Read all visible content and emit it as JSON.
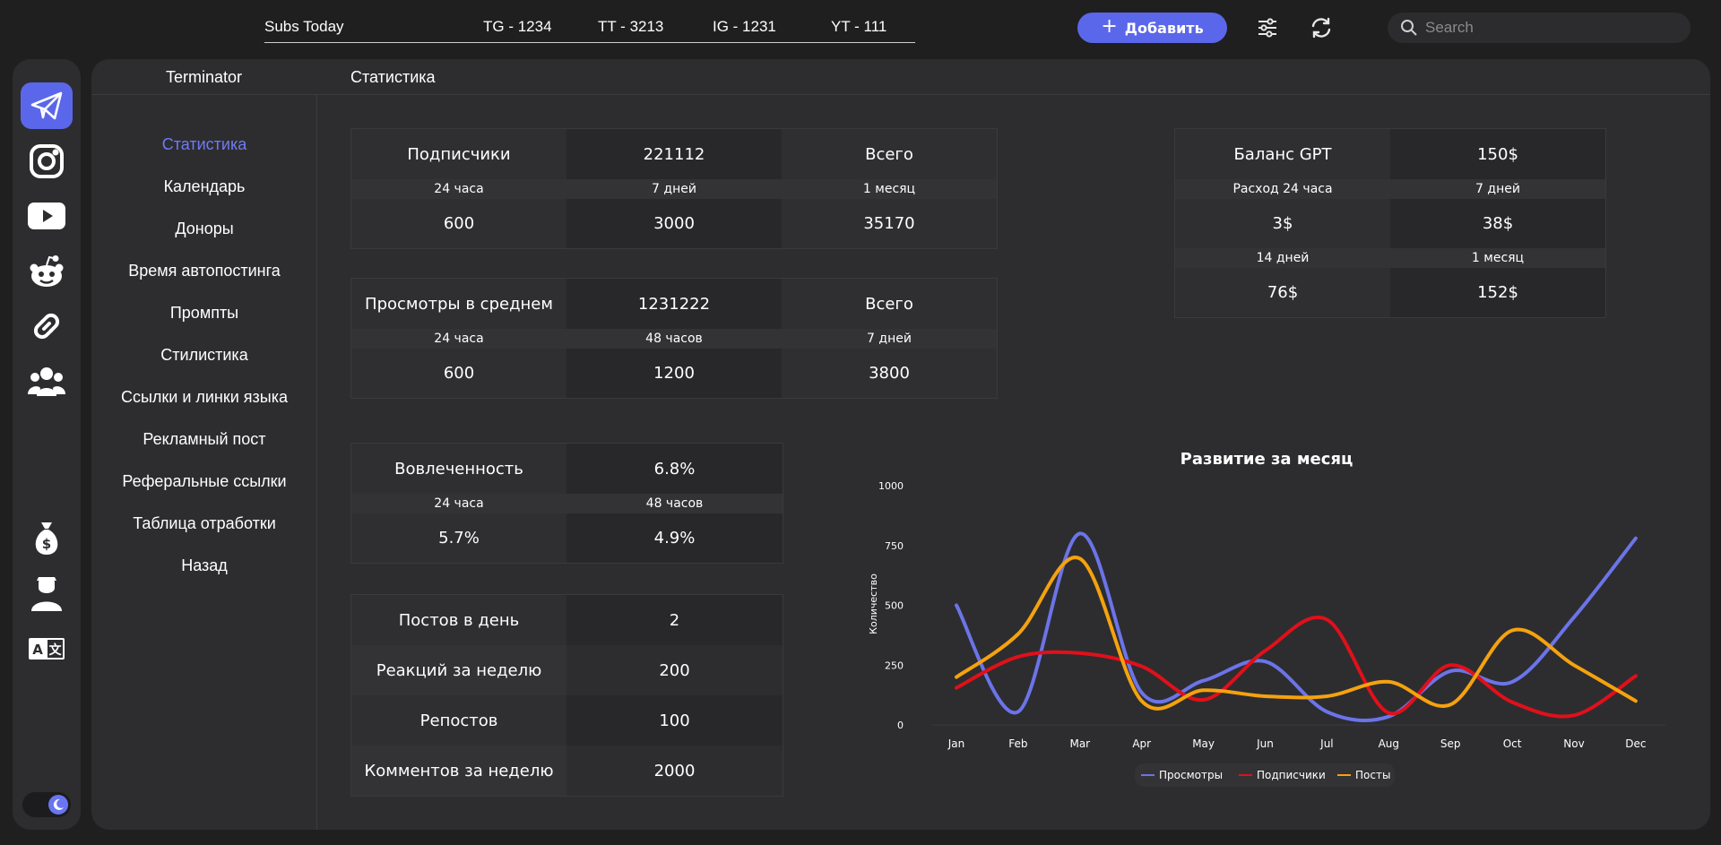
{
  "topbar": {
    "subs_label": "Subs Today",
    "tg": "TG - 1234",
    "tt": "TT - 3213",
    "ig": "IG - 1231",
    "yt": "YT - 111",
    "add_label": "Добавить",
    "search_placeholder": "Search",
    "accent": "#5b67ea"
  },
  "rail": {
    "items": [
      "telegram-icon",
      "instagram-icon",
      "youtube-icon",
      "reddit-icon",
      "link-icon",
      "users-icon"
    ],
    "bottom": [
      "money-bag-icon",
      "user-icon",
      "translate-icon"
    ]
  },
  "panel": {
    "account": "Terminator",
    "page": "Статистика"
  },
  "subnav": {
    "items": [
      "Статистика",
      "Календарь",
      "Доноры",
      "Время автопостинга",
      "Промпты",
      "Стилистика",
      "Ссылки и линки языка",
      "Рекламный пост",
      "Реферальные ссылки",
      "Таблица отработки",
      "Назад"
    ]
  },
  "subs": {
    "label": "Подписчики",
    "value": "221112",
    "total": "Всего",
    "h1": "24 часа",
    "h2": "7 дней",
    "h3": "1 месяц",
    "v1": "600",
    "v2": "3000",
    "v3": "35170"
  },
  "views": {
    "label": "Просмотры в среднем",
    "value": "1231222",
    "total": "Всего",
    "h1": "24 часа",
    "h2": "48 часов",
    "h3": "7 дней",
    "v1": "600",
    "v2": "1200",
    "v3": "3800"
  },
  "engagement": {
    "label": "Вовлеченность",
    "value": "6.8%",
    "h1": "24 часа",
    "h2": "48 часов",
    "v1": "5.7%",
    "v2": "4.9%"
  },
  "posts": {
    "rows": [
      {
        "label": "Постов в день",
        "value": "2"
      },
      {
        "label": "Реакций за неделю",
        "value": "200"
      },
      {
        "label": "Репостов",
        "value": "100"
      },
      {
        "label": "Комментов за неделю",
        "value": "2000"
      }
    ]
  },
  "gpt": {
    "label": "Баланс GPT",
    "value": "150$",
    "h1": "Расход 24 часа",
    "h2": "7 дней",
    "v1": "3$",
    "v2": "38$",
    "h3": "14 дней",
    "h4": "1 месяц",
    "v3": "76$",
    "v4": "152$"
  },
  "chart_data": {
    "type": "line",
    "title": "Развитие за месяц",
    "ylabel": "Количество",
    "xlabel": "",
    "categories": [
      "Jan",
      "Feb",
      "Mar",
      "Apr",
      "May",
      "Jun",
      "Jul",
      "Aug",
      "Sep",
      "Oct",
      "Nov",
      "Dec"
    ],
    "yticks": [
      "0",
      "250",
      "500",
      "750",
      "1000"
    ],
    "ylim": [
      0,
      1000
    ],
    "legend_position": "bottom",
    "series": [
      {
        "name": "Просмотры",
        "color": "#6b74e8",
        "values": [
          500,
          55,
          800,
          135,
          185,
          265,
          55,
          35,
          225,
          180,
          450,
          780
        ]
      },
      {
        "name": "Подписчики",
        "color": "#e0101a",
        "values": [
          155,
          285,
          300,
          245,
          105,
          310,
          440,
          50,
          250,
          95,
          40,
          205
        ]
      },
      {
        "name": "Посты",
        "color": "#f5a20f",
        "values": [
          200,
          380,
          695,
          100,
          145,
          120,
          120,
          180,
          85,
          395,
          250,
          100
        ]
      }
    ]
  }
}
